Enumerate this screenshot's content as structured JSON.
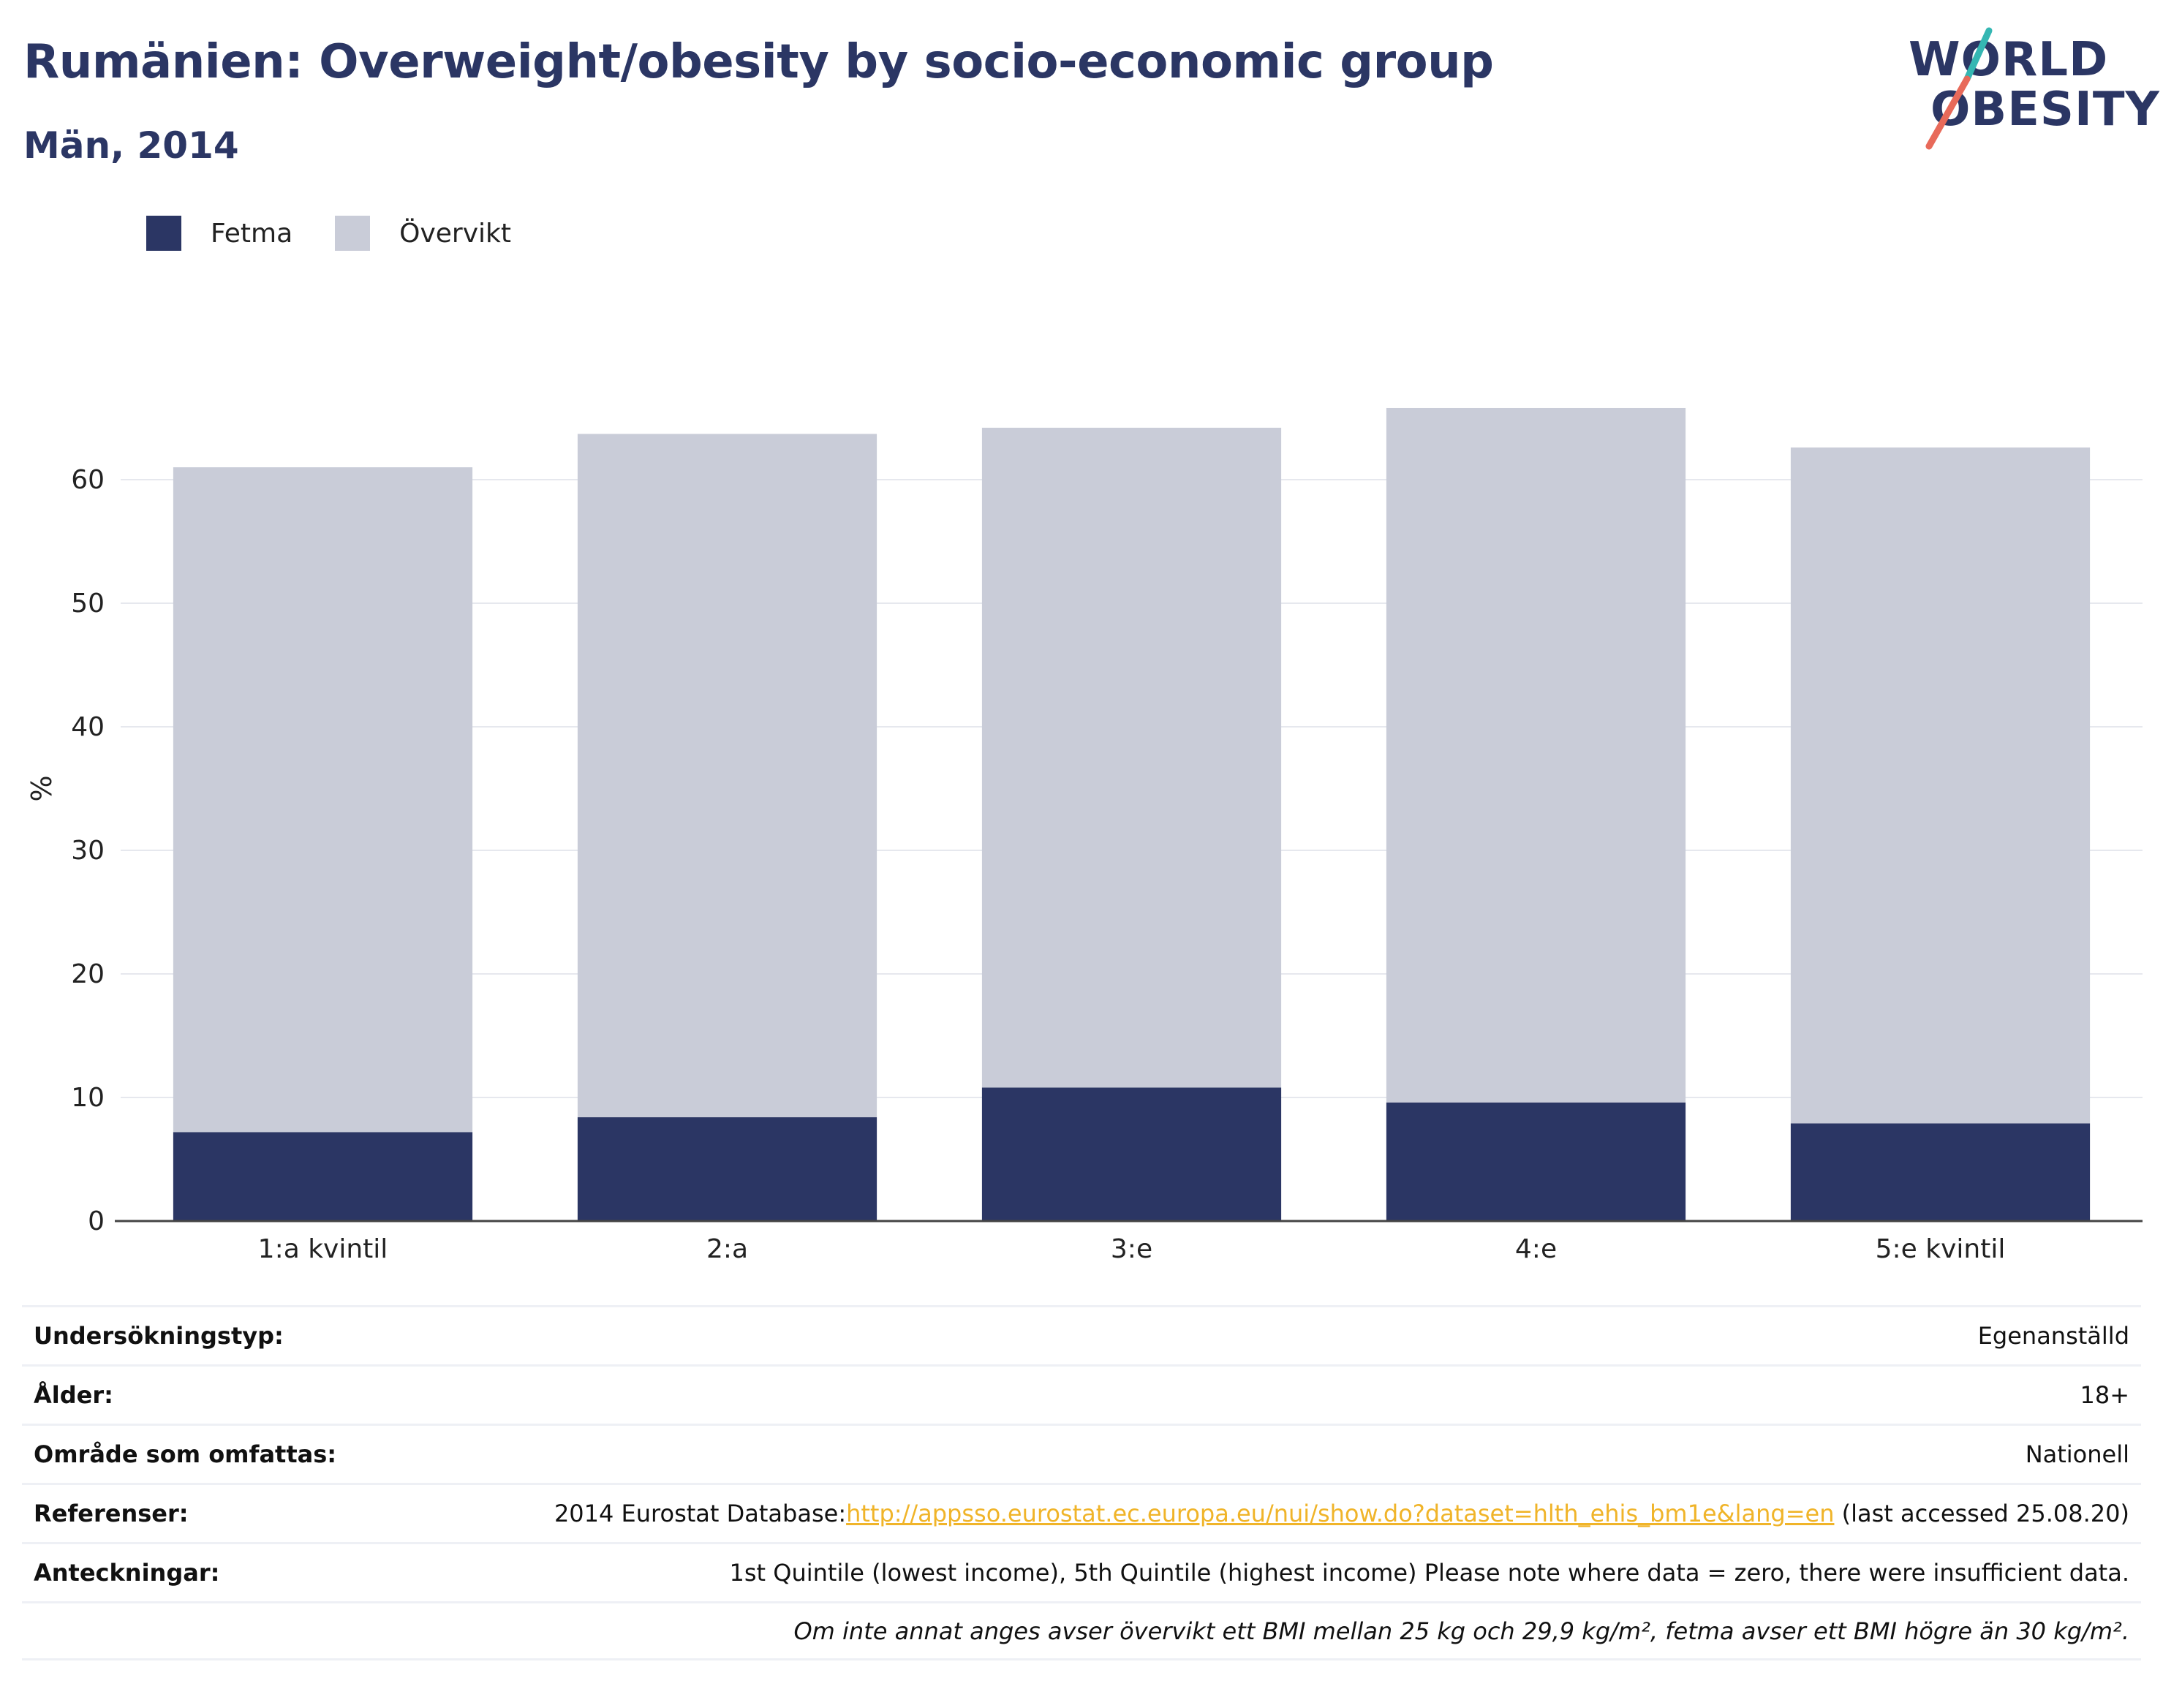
{
  "header": {
    "title": "Rumänien: Overweight/obesity by socio-economic group",
    "subtitle": "Män, 2014"
  },
  "logo": {
    "line1": "WORLD",
    "line2": "OBESITY",
    "name": "world-obesity-logo"
  },
  "colors": {
    "fetma": "#2b3664",
    "overvikt": "#c9ccd8",
    "title": "#2b3664",
    "link": "#f0b429"
  },
  "chart_data": {
    "type": "bar",
    "stacked": true,
    "categories": [
      "1:a kvintil",
      "2:a",
      "3:e",
      "4:e",
      "5:e kvintil"
    ],
    "series": [
      {
        "name": "Fetma",
        "values": [
          7.2,
          8.4,
          10.8,
          9.6,
          7.9
        ]
      },
      {
        "name": "Övervikt",
        "values": [
          53.8,
          55.3,
          53.4,
          56.2,
          54.7
        ]
      }
    ],
    "ylabel": "%",
    "xlabel": "",
    "ylim": [
      0,
      70
    ],
    "yticks": [
      0,
      10,
      20,
      30,
      40,
      50,
      60
    ],
    "grid": true,
    "legend": "top-left"
  },
  "info": {
    "rows": [
      {
        "label": "Undersökningstyp:",
        "value": "Egenanställd"
      },
      {
        "label": "Ålder:",
        "value": "18+"
      },
      {
        "label": "Område som omfattas:",
        "value": "Nationell"
      },
      {
        "label": "Referenser:",
        "value_prefix": "2014 Eurostat Database:",
        "link": "http://appsso.eurostat.ec.europa.eu/nui/show.do?dataset=hlth_ehis_bm1e&lang=en",
        "value_suffix": " (last accessed 25.08.20)"
      },
      {
        "label": "Anteckningar:",
        "value": "1st Quintile (lowest income), 5th Quintile (highest income) Please note where data = zero, there were insufficient data."
      }
    ],
    "footnote": "Om inte annat anges avser övervikt ett BMI mellan 25 kg och 29,9 kg/m², fetma avser ett BMI högre än 30 kg/m²."
  }
}
